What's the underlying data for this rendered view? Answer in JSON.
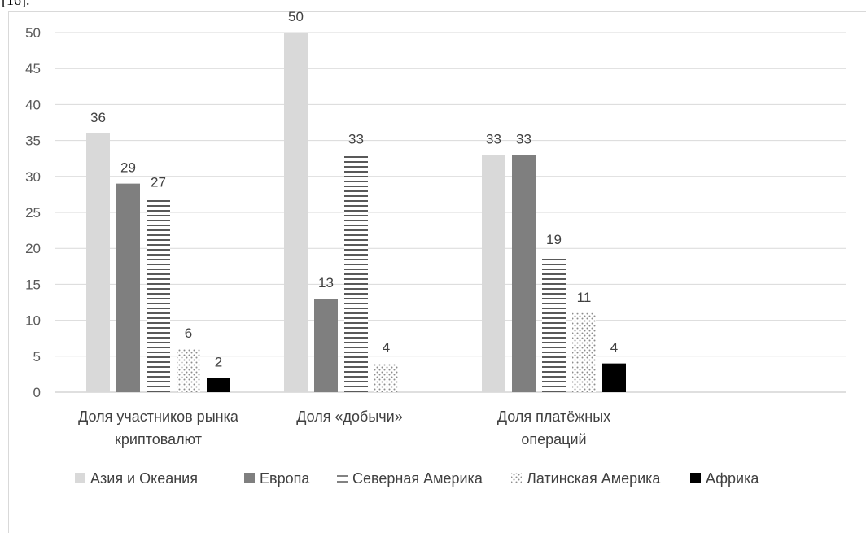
{
  "header_fragment": "[16].",
  "chart_data": {
    "type": "bar",
    "categories": [
      [
        "Доля участников рынка",
        "криптовалют"
      ],
      [
        "Доля «добычи»"
      ],
      [
        "Доля платёжных",
        "операций"
      ]
    ],
    "series": [
      {
        "name": "Азия и Океания",
        "values": [
          36,
          50,
          33
        ],
        "color": "#d9d9d9",
        "pattern": "solid"
      },
      {
        "name": "Европа",
        "values": [
          29,
          13,
          33
        ],
        "color": "#7f7f7f",
        "pattern": "solid"
      },
      {
        "name": "Северная Америка",
        "values": [
          27,
          33,
          19
        ],
        "color": "#595959",
        "pattern": "horizontal-lines"
      },
      {
        "name": "Латинская Америка",
        "values": [
          6,
          4,
          11
        ],
        "color": "#a6a6a6",
        "pattern": "dots"
      },
      {
        "name": "Африка",
        "values": [
          2,
          null,
          4
        ],
        "color": "#000000",
        "pattern": "solid"
      }
    ],
    "ylim": [
      0,
      50
    ],
    "yticks": [
      0,
      5,
      10,
      15,
      20,
      25,
      30,
      35,
      40,
      45,
      50
    ],
    "grid": true,
    "legend_position": "bottom",
    "title": "",
    "xlabel": "",
    "ylabel": ""
  }
}
